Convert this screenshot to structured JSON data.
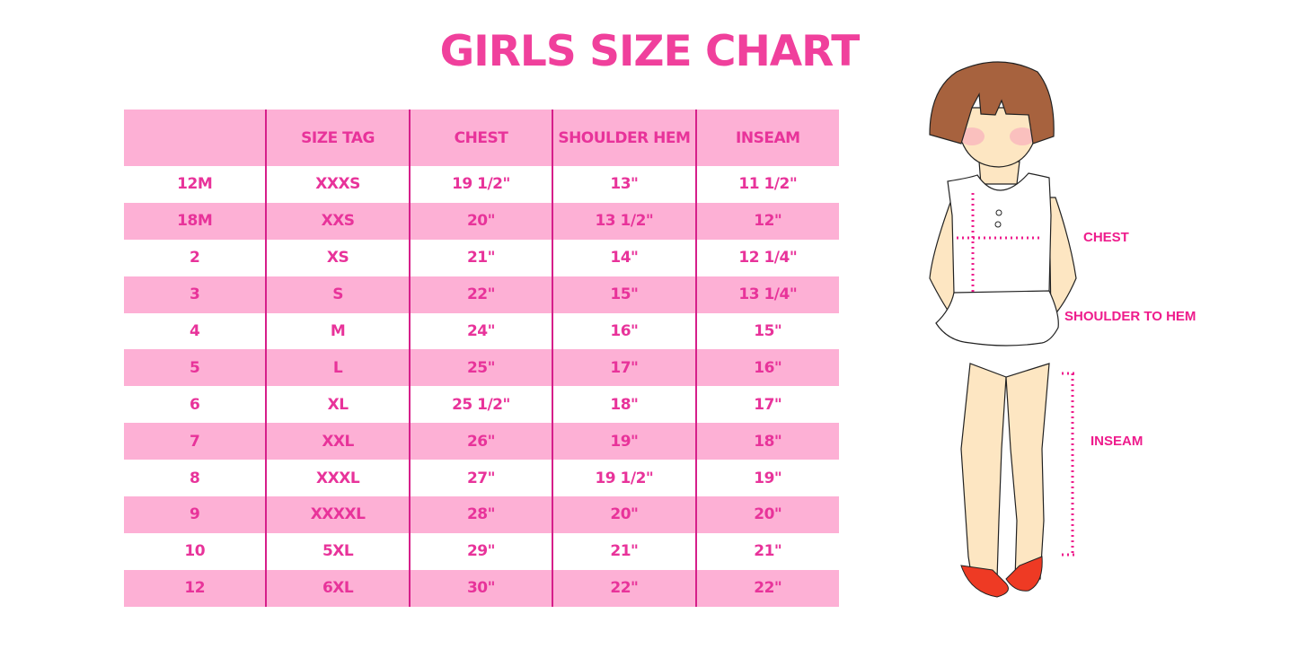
{
  "title": "GIRLS SIZE CHART",
  "colors": {
    "accent": "#f0409c",
    "row_band": "#fdb0d5",
    "divider": "#d61f8a"
  },
  "table": {
    "headers": [
      "",
      "SIZE TAG",
      "CHEST",
      "SHOULDER HEM",
      "INSEAM"
    ],
    "rows": [
      [
        "12M",
        "XXXS",
        "19 1/2\"",
        "13\"",
        "11 1/2\""
      ],
      [
        "18M",
        "XXS",
        "20\"",
        "13 1/2\"",
        "12\""
      ],
      [
        "2",
        "XS",
        "21\"",
        "14\"",
        "12 1/4\""
      ],
      [
        "3",
        "S",
        "22\"",
        "15\"",
        "13 1/4\""
      ],
      [
        "4",
        "M",
        "24\"",
        "16\"",
        "15\""
      ],
      [
        "5",
        "L",
        "25\"",
        "17\"",
        "16\""
      ],
      [
        "6",
        "XL",
        "25 1/2\"",
        "18\"",
        "17\""
      ],
      [
        "7",
        "XXL",
        "26\"",
        "19\"",
        "18\""
      ],
      [
        "8",
        "XXXL",
        "27\"",
        "19 1/2\"",
        "19\""
      ],
      [
        "9",
        "XXXXL",
        "28\"",
        "20\"",
        "20\""
      ],
      [
        "10",
        "5XL",
        "29\"",
        "21\"",
        "21\""
      ],
      [
        "12",
        "6XL",
        "30\"",
        "22\"",
        "22\""
      ]
    ]
  },
  "illustration": {
    "labels": {
      "chest": "CHEST",
      "shoulder_to_hem": "SHOULDER TO HEM",
      "inseam": "INSEAM"
    }
  }
}
